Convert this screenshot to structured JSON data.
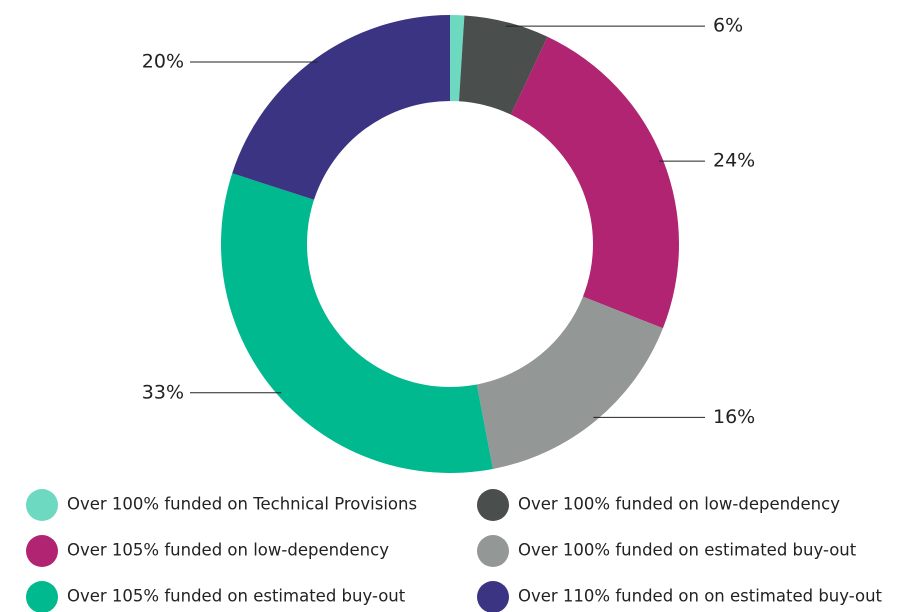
{
  "chart_data": {
    "type": "donut",
    "categories": [
      "Over 100% funded on Technical Provisions",
      "Over 100% funded on low-dependency",
      "Over 105% funded on low-dependency",
      "Over 100% funded on estimated buy-out",
      "Over 105% funded on estimated buy-out",
      "Over 110% funded on on estimated buy-out"
    ],
    "values": [
      1,
      6,
      24,
      16,
      33,
      20
    ],
    "value_labels": [
      null,
      "6%",
      "24%",
      "16%",
      "33%",
      "20%"
    ],
    "colors": [
      "#6dd9c0",
      "#4a4f4e",
      "#b02472",
      "#939796",
      "#00b98e",
      "#3b3483"
    ],
    "legend": "bottom"
  }
}
